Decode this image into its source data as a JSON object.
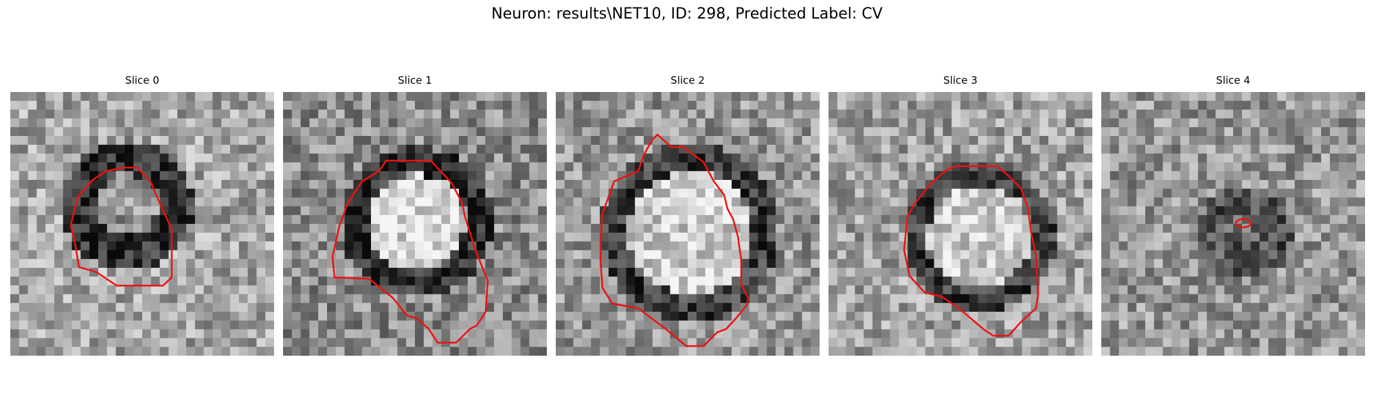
{
  "figure": {
    "title": "Neuron: results\\NET10, ID: 298, Predicted Label: CV"
  },
  "colors": {
    "contour": "#ee1111",
    "colormap": "grayscale"
  },
  "panels": [
    {
      "title": "Slice 0"
    },
    {
      "title": "Slice 1"
    },
    {
      "title": "Slice 2"
    },
    {
      "title": "Slice 3"
    },
    {
      "title": "Slice 4"
    }
  ]
}
